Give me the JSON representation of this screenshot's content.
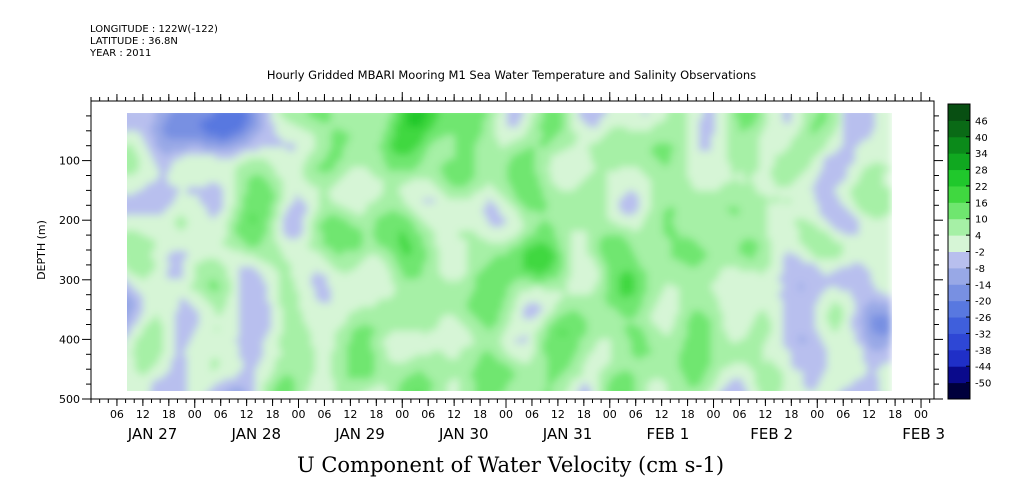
{
  "header": {
    "longitude": "LONGITUDE : 122W(-122)",
    "latitude": "LATITUDE : 36.8N",
    "year": "YEAR : 2011"
  },
  "chart_data": {
    "type": "heatmap",
    "title": "Hourly Gridded MBARI Mooring M1 Sea Water Temperature and Salinity Observations",
    "xlabel": "U Component of Water Velocity (cm s-1)",
    "ylabel": "DEPTH (m)",
    "x_axis": {
      "type": "time",
      "start": "2011-01-26T03:00",
      "end": "2011-02-03T06:00",
      "data_start": "2011-01-26T09:00",
      "data_end": "2011-02-02T18:00",
      "hour_tick_labels": [
        "06",
        "12",
        "18",
        "00",
        "06",
        "12",
        "18",
        "00",
        "06",
        "12",
        "18",
        "00",
        "06",
        "12",
        "18",
        "00",
        "06",
        "12",
        "18",
        "00",
        "06",
        "12",
        "18",
        "00",
        "06",
        "12",
        "18",
        "00",
        "06",
        "12",
        "18",
        "00"
      ],
      "day_labels": [
        "JAN 27",
        "JAN 28",
        "JAN 29",
        "JAN 30",
        "JAN 31",
        "FEB  1",
        "FEB  2",
        "FEB  3"
      ]
    },
    "y_axis": {
      "ylim": [
        500,
        0
      ],
      "inverted": true,
      "ticks": [
        100,
        200,
        300,
        400,
        500
      ],
      "tick_labels": [
        "100",
        "200",
        "300",
        "400",
        "500"
      ],
      "data_range": [
        20,
        490
      ]
    },
    "colorbar": {
      "levels": [
        -50,
        -44,
        -38,
        -32,
        -26,
        -20,
        -14,
        -8,
        -2,
        4,
        10,
        16,
        22,
        28,
        34,
        40,
        46
      ],
      "labels": [
        "46",
        "40",
        "34",
        "28",
        "22",
        "16",
        "10",
        "4",
        "-2",
        "-8",
        "-14",
        "-20",
        "-26",
        "-32",
        "-38",
        "-44",
        "-50"
      ],
      "colors": [
        "#00003c",
        "#0a0a8c",
        "#1f2fc7",
        "#2e47d5",
        "#3f5fdc",
        "#5878e0",
        "#7890e2",
        "#98a8e6",
        "#b8bfee",
        "#d6f5d6",
        "#a6f0a6",
        "#6fe66f",
        "#40d840",
        "#20c82c",
        "#10a820",
        "#0b8a1a",
        "#0a6a16",
        "#084f12"
      ]
    },
    "field_description_values": {
      "dominant_range": [
        -14,
        16
      ],
      "min_region": {
        "time": "2011-01-27T06:00",
        "depth": [
          20,
          60
        ],
        "value": -26
      }
    }
  }
}
